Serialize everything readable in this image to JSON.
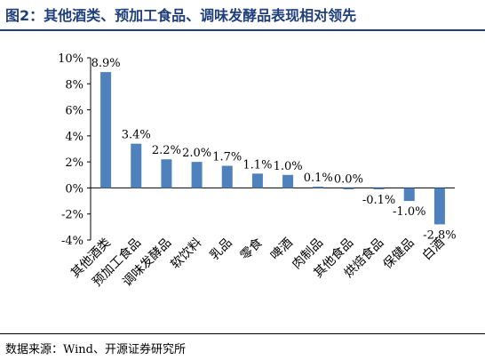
{
  "title": "图2：其他酒类、预加工食品、调味发酵品表现相对领先",
  "source": "数据来源：Wind、开源证券研究所",
  "colors": {
    "bar": "#4f81bd",
    "title": "#1f3f7a",
    "axis": "#000000"
  },
  "chart_data": {
    "type": "bar",
    "categories": [
      "其他酒类",
      "预加工食品",
      "调味发酵品",
      "软饮料",
      "乳品",
      "零食",
      "啤酒",
      "肉制品",
      "其他食品",
      "烘焙食品",
      "保健品",
      "白酒"
    ],
    "values": [
      8.9,
      3.4,
      2.2,
      2.0,
      1.7,
      1.1,
      1.0,
      0.1,
      0.0,
      -0.1,
      -1.0,
      -2.8
    ],
    "data_labels": [
      "8.9%",
      "3.4%",
      "2.2%",
      "2.0%",
      "1.7%",
      "1.1%",
      "1.0%",
      "0.1%",
      "0.0%",
      "-0.1%",
      "-1.0%",
      "-2.8%"
    ],
    "y_ticks": [
      "10%",
      "8%",
      "6%",
      "4%",
      "2%",
      "0%",
      "-2%",
      "-4%"
    ],
    "y_tick_values": [
      10,
      8,
      6,
      4,
      2,
      0,
      -2,
      -4
    ],
    "ylim": [
      -4,
      10
    ],
    "grid": false,
    "legend": "none"
  }
}
